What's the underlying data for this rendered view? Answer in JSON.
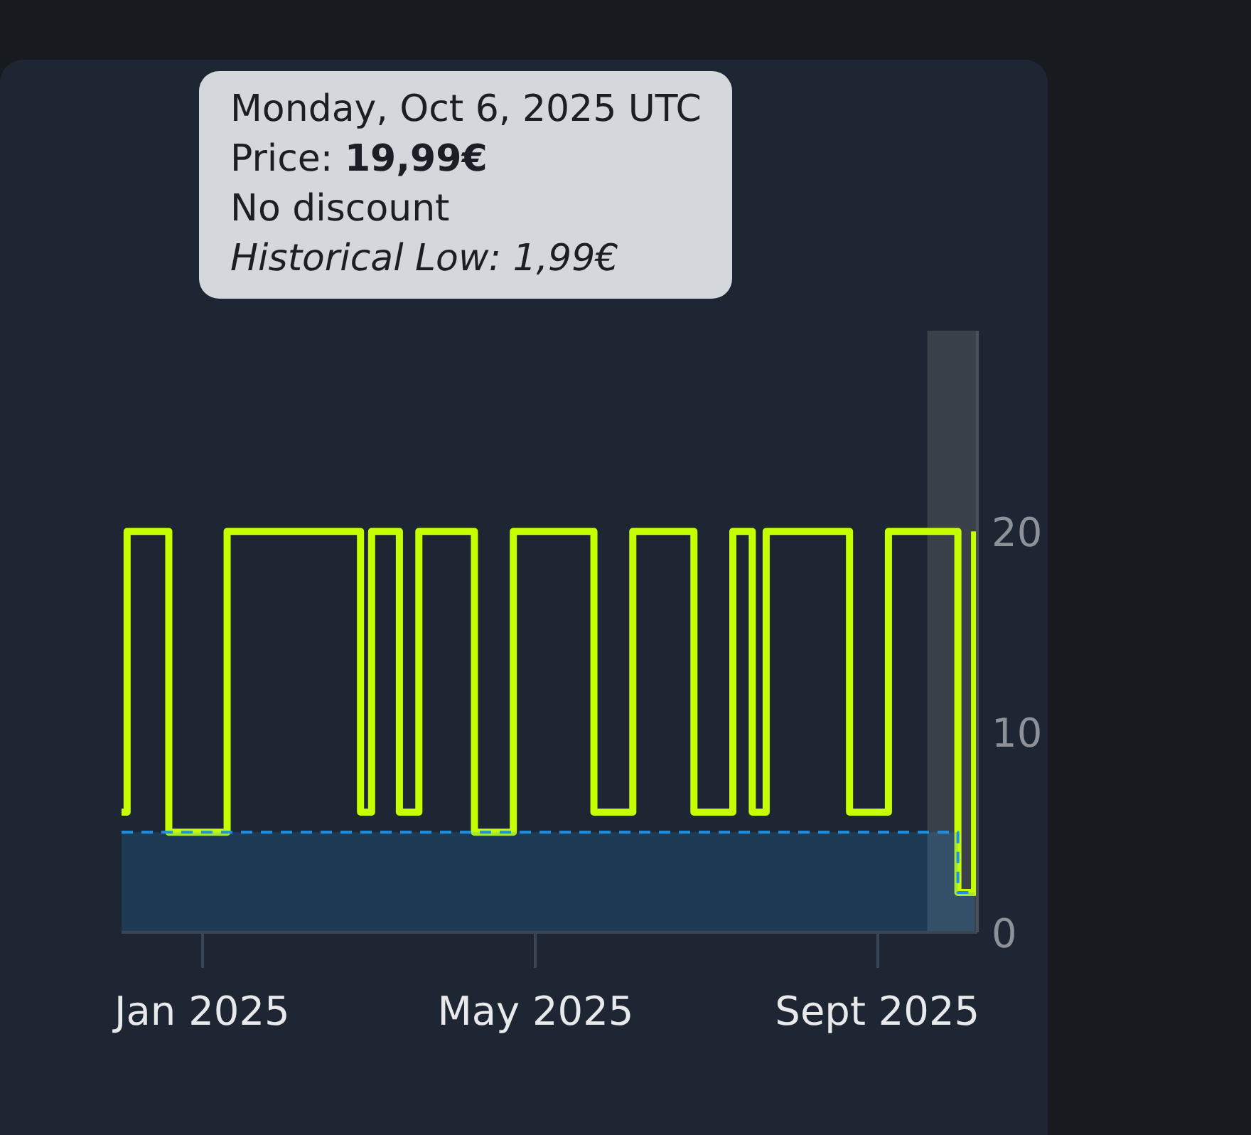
{
  "chart_data": {
    "type": "step",
    "annotations": [
      "Monday, Oct 6, 2025 UTC",
      "Price: 19,99€",
      "No discount",
      "Historical Low: 1,99€"
    ],
    "xlim": [
      "2024-12-03",
      "2025-10-07"
    ],
    "xticks": [
      {
        "value": "2025-01-01",
        "label": "Jan 2025"
      },
      {
        "value": "2025-05-01",
        "label": "May 2025"
      },
      {
        "value": "2025-09-01",
        "label": "Sept 2025"
      }
    ],
    "ylim": [
      0,
      30
    ],
    "yticks": [
      0,
      10,
      20
    ],
    "series": [
      {
        "color": "#c6ff00",
        "x": [
          "2024-12-03",
          "2024-12-05",
          "2024-12-20",
          "2025-01-10",
          "2025-02-27",
          "2025-03-03",
          "2025-03-13",
          "2025-03-20",
          "2025-04-09",
          "2025-04-23",
          "2025-05-22",
          "2025-06-05",
          "2025-06-27",
          "2025-07-11",
          "2025-07-18",
          "2025-07-23",
          "2025-08-22",
          "2025-09-05",
          "2025-09-30",
          "2025-10-06"
        ],
        "values": [
          5.99,
          19.99,
          4.99,
          19.99,
          5.99,
          19.99,
          5.99,
          19.99,
          4.99,
          19.99,
          5.99,
          19.99,
          5.99,
          19.99,
          5.99,
          19.99,
          5.99,
          19.99,
          1.99,
          19.99
        ]
      },
      {
        "type": "area",
        "color": "#1e90e6",
        "line_style": "dashed",
        "x": [
          "2024-12-03",
          "2025-09-30",
          "2025-09-30",
          "2025-10-06"
        ],
        "values": [
          4.99,
          4.99,
          1.99,
          1.99
        ]
      }
    ],
    "bands": [
      {
        "axis": "x",
        "from": "2025-09-19",
        "to": "2025-10-07",
        "color": "#3b414a"
      }
    ],
    "grid": false
  }
}
